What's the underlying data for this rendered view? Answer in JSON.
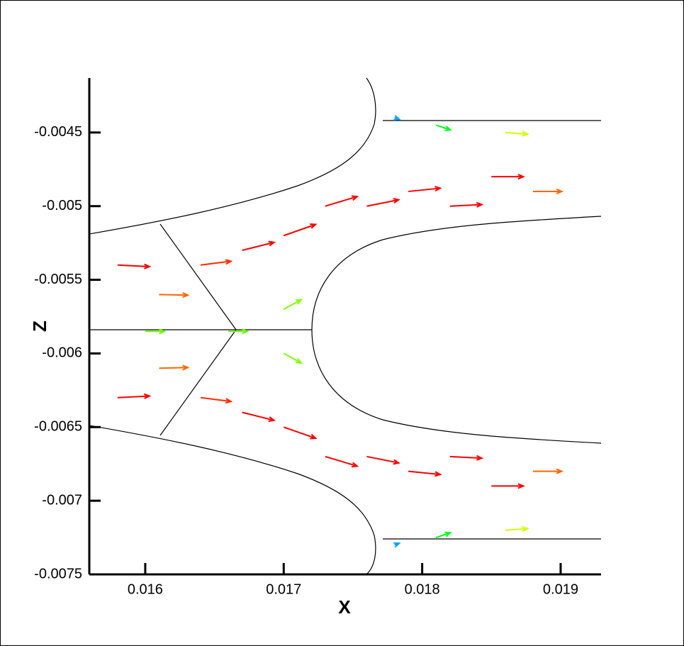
{
  "chart_data": {
    "type": "vector",
    "xlabel": "X",
    "ylabel": "Z",
    "xlim": [
      0.015596,
      0.019292
    ],
    "ylim": [
      -0.0075,
      -0.00413
    ],
    "xticks": [
      0.016,
      0.017,
      0.018,
      0.019
    ],
    "yticks": [
      -0.0075,
      -0.007,
      -0.0065,
      -0.006,
      -0.0055,
      -0.005,
      -0.0045
    ],
    "colormap": [
      "#0000ff",
      "#00ffff",
      "#00ff00",
      "#ffff00",
      "#ff0000"
    ],
    "clim": [
      0,
      1
    ],
    "vectors": {
      "x": [
        0.0158,
        0.0161,
        0.0164,
        0.0167,
        0.017,
        0.0173,
        0.0176,
        0.0179,
        0.0182,
        0.0185,
        0.0188,
        0.0186,
        0.0181,
        0.0178,
        0.017,
        0.0166,
        0.016,
        0.0158,
        0.0161,
        0.0164,
        0.0167,
        0.017,
        0.0173,
        0.0176,
        0.0179,
        0.0182,
        0.0185,
        0.0188,
        0.0186,
        0.0181,
        0.0178,
        0.017
      ],
      "y": [
        -0.0054,
        -0.0056,
        -0.0054,
        -0.0053,
        -0.0052,
        -0.005,
        -0.005,
        -0.0049,
        -0.005,
        -0.0048,
        -0.0049,
        -0.0045,
        -0.00445,
        -0.0044,
        -0.0057,
        -0.00585,
        -0.00585,
        -0.0063,
        -0.0061,
        -0.0063,
        -0.0064,
        -0.0065,
        -0.0067,
        -0.0067,
        -0.0068,
        -0.0067,
        -0.0069,
        -0.0068,
        -0.0072,
        -0.00725,
        -0.0073,
        -0.006
      ],
      "u": [
        1.0,
        0.9,
        0.95,
        1.0,
        1.0,
        1.0,
        1.0,
        1.0,
        1.0,
        1.0,
        0.9,
        0.7,
        0.45,
        0.15,
        0.55,
        0.6,
        0.6,
        1.0,
        0.9,
        0.95,
        1.0,
        1.0,
        1.0,
        1.0,
        1.0,
        1.0,
        1.0,
        0.9,
        0.7,
        0.45,
        0.15,
        0.55
      ],
      "v": [
        -0.05,
        -0.02,
        0.12,
        0.25,
        0.35,
        0.3,
        0.2,
        0.1,
        0.05,
        0,
        0,
        -0.05,
        -0.15,
        -0.05,
        0.3,
        0,
        0,
        0.05,
        0.02,
        -0.12,
        -0.25,
        -0.35,
        -0.3,
        -0.2,
        -0.1,
        -0.05,
        0,
        0,
        0.05,
        0.15,
        0.05,
        -0.3
      ]
    }
  }
}
